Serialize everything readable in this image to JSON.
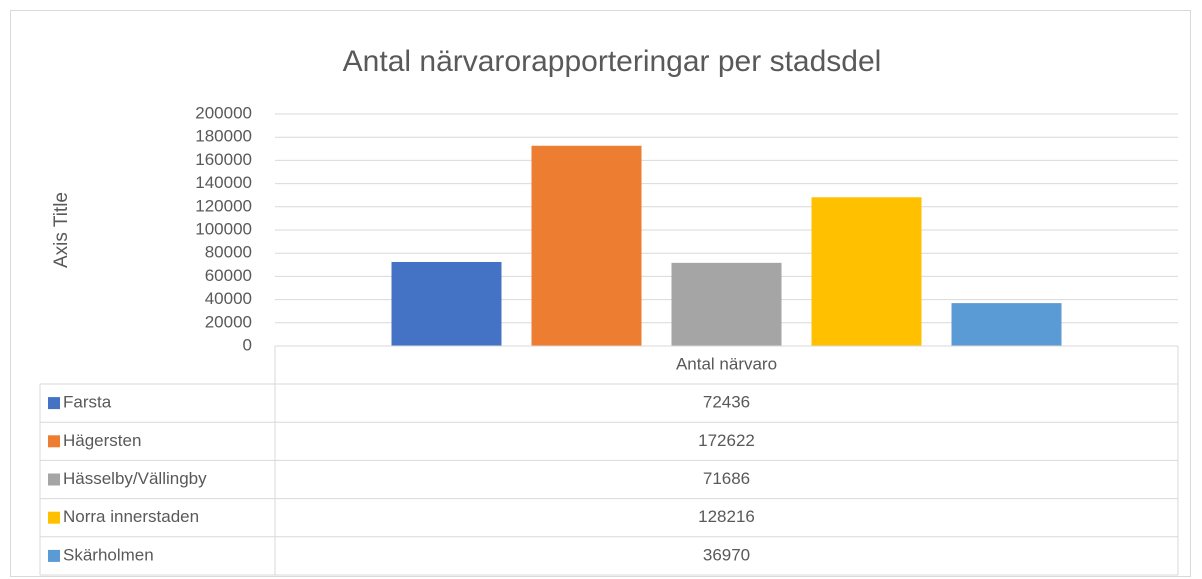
{
  "chart_data": {
    "type": "bar",
    "title": "Antal närvarorapporteringar per stadsdel",
    "y_label": "Axis Title",
    "categories": [
      "Antal närvaro"
    ],
    "series": [
      {
        "name": "Farsta",
        "color": "#4472c4",
        "values": [
          72436
        ]
      },
      {
        "name": "Hägersten",
        "color": "#ed7d31",
        "values": [
          172622
        ]
      },
      {
        "name": "Hässelby/Vällingby",
        "color": "#a5a5a5",
        "values": [
          71686
        ]
      },
      {
        "name": "Norra innerstaden",
        "color": "#ffc000",
        "values": [
          128216
        ]
      },
      {
        "name": "Skärholmen",
        "color": "#5b9bd5",
        "values": [
          36970
        ]
      }
    ],
    "ylim": [
      0,
      200000
    ],
    "yticks": [
      0,
      20000,
      40000,
      60000,
      80000,
      100000,
      120000,
      140000,
      160000,
      180000,
      200000
    ],
    "grid": true,
    "data_table": true
  }
}
